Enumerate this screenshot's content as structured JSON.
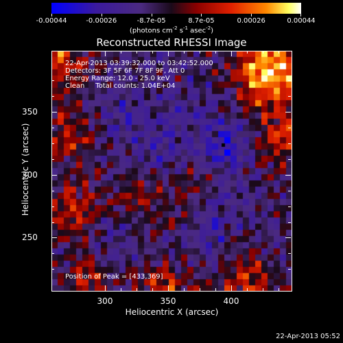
{
  "colorbar": {
    "ticks": [
      "-0.00044",
      "-0.00026",
      "-8.7e-05",
      "8.7e-05",
      "0.00026",
      "0.00044"
    ],
    "units_prefix": "(photons cm",
    "units_exp1": "-2",
    "units_mid": " s",
    "units_exp2": "-1",
    "units_mid2": " asec",
    "units_exp3": "-2",
    "units_suffix": ")"
  },
  "plot": {
    "title": "Reconstructed RHESSI Image",
    "xlabel": "Heliocentric X (arcsec)",
    "ylabel": "Heliocentric Y (arcsec)",
    "x_ticks": [
      "300",
      "350",
      "400"
    ],
    "y_ticks": [
      "250",
      "300",
      "350"
    ],
    "info_time": "22-Apr-2013 03:39:32.000 to 03:42:52.000",
    "info_detectors": "Detectors: 3F 5F 6F 7F 8F 9F, Att 0",
    "info_energy": "Energy Range: 12.0 - 25.0 keV",
    "info_clean": "Clean     Total counts: 1.04E+04",
    "peak_label": "Position of Peak = [433,369]"
  },
  "timestamp": "22-Apr-2013 05:52",
  "chart_data": {
    "type": "heatmap",
    "title": "Reconstructed RHESSI Image",
    "xlabel": "Heliocentric X (arcsec)",
    "ylabel": "Heliocentric Y (arcsec)",
    "xlim": [
      258,
      448
    ],
    "ylim": [
      202,
      392
    ],
    "x_ticks": [
      300,
      350,
      400
    ],
    "y_ticks": [
      250,
      300,
      350
    ],
    "colorbar_range": [
      -0.00044,
      0.00044
    ],
    "colorbar_units": "photons cm^-2 s^-1 asec^-2",
    "peak_position": [
      433,
      369
    ]
  }
}
